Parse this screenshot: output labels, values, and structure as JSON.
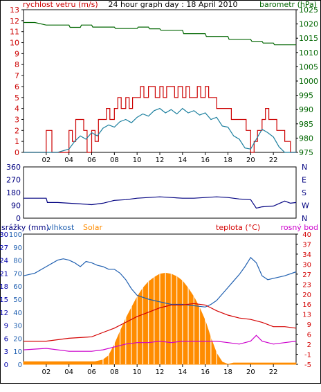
{
  "colors": {
    "wind_axis": "#cc0000",
    "pressure_axis": "#006600",
    "direction_axis": "#000080",
    "precip_axis": "#0000aa",
    "humidity_axis": "#1f5fb0",
    "solar": "#ff8c00",
    "temperature": "#d40000",
    "dewpoint": "#cc00cc",
    "title": "#000000"
  },
  "chart_data": [
    {
      "id": "wind-pressure",
      "type": "line",
      "title": "24 hour graph day : 18 April 2010",
      "ylabel_left": "rychlost vetru (m/s)",
      "ylabel_right": "barometr (hPa)",
      "x_ticks": [
        "02",
        "04",
        "06",
        "08",
        "10",
        "12",
        "14",
        "16",
        "18",
        "20",
        "22"
      ],
      "xlim": [
        0,
        24
      ],
      "ylim_left": [
        0,
        13
      ],
      "ylim_right": [
        975,
        1025
      ],
      "y_ticks_left": [
        0,
        1,
        2,
        3,
        4,
        5,
        6,
        7,
        8,
        9,
        10,
        11,
        12,
        13
      ],
      "y_ticks_right": [
        975,
        980,
        985,
        990,
        995,
        1000,
        1005,
        1010,
        1015,
        1020,
        1025
      ],
      "series": [
        {
          "key": "gust",
          "axis": "left",
          "x": [
            0,
            1.5,
            2,
            2.5,
            3,
            3.5,
            4,
            4.3,
            4.6,
            5,
            5.3,
            5.6,
            6,
            6.3,
            6.6,
            7,
            7.3,
            7.6,
            8,
            8.3,
            8.6,
            9,
            9.3,
            9.6,
            10,
            10.3,
            10.6,
            11,
            11.3,
            11.6,
            12,
            12.3,
            12.6,
            13,
            13.3,
            13.6,
            14,
            14.3,
            14.6,
            15,
            15.3,
            15.6,
            16,
            16.3,
            16.6,
            17,
            17.3,
            17.6,
            18,
            18.3,
            18.6,
            19,
            19.3,
            19.6,
            20,
            20.3,
            20.6,
            21,
            21.3,
            21.6,
            22,
            22.3,
            22.6,
            23,
            23.5,
            24
          ],
          "values": [
            0,
            0,
            2,
            0,
            0,
            0,
            2,
            1,
            3,
            3,
            2,
            0,
            2,
            1,
            3,
            3,
            4,
            3,
            4,
            5,
            4,
            5,
            4,
            5,
            5,
            6,
            5,
            6,
            6,
            5,
            6,
            5,
            6,
            6,
            5,
            6,
            5,
            6,
            5,
            5,
            6,
            5,
            6,
            5,
            5,
            4,
            4,
            4,
            4,
            3,
            3,
            3,
            3,
            2,
            0,
            1,
            2,
            3,
            4,
            3,
            3,
            2,
            2,
            1,
            0,
            0
          ]
        },
        {
          "key": "average",
          "axis": "left",
          "x": [
            0,
            2,
            3,
            4,
            4.5,
            5,
            5.5,
            6,
            6.5,
            7,
            7.5,
            8,
            8.5,
            9,
            9.5,
            10,
            10.5,
            11,
            11.5,
            12,
            12.5,
            13,
            13.5,
            14,
            14.5,
            15,
            15.5,
            16,
            16.5,
            17,
            17.5,
            18,
            18.5,
            19,
            19.5,
            20,
            20.5,
            21,
            21.5,
            22,
            22.5,
            23,
            24
          ],
          "values": [
            0,
            0,
            0,
            0.3,
            1,
            1.5,
            1.2,
            1.8,
            1.5,
            2.2,
            2.5,
            2.3,
            2.8,
            3,
            2.7,
            3.2,
            3.5,
            3.3,
            3.8,
            4,
            3.6,
            3.9,
            3.5,
            4,
            3.6,
            3.8,
            3.4,
            3.6,
            3,
            3.2,
            2.4,
            2.3,
            1.5,
            1.2,
            0.4,
            0.3,
            1.2,
            2.1,
            1.8,
            1.4,
            0.5,
            0,
            0
          ]
        },
        {
          "key": "pressure",
          "axis": "right",
          "x": [
            0,
            1,
            2,
            4,
            4.1,
            5,
            5.1,
            6,
            6.1,
            8,
            8.1,
            10,
            10.1,
            11,
            11.1,
            12,
            12.1,
            14,
            14.1,
            16,
            16.1,
            18,
            18.1,
            20,
            20.1,
            21,
            21.1,
            22,
            22.1,
            24
          ],
          "values": [
            1020.5,
            1020.5,
            1019.6,
            1019.6,
            1018.8,
            1018.8,
            1019.6,
            1019.6,
            1018.9,
            1018.9,
            1018.4,
            1018.4,
            1018.9,
            1018.9,
            1018.3,
            1018.3,
            1017.8,
            1017.8,
            1016.6,
            1016.6,
            1015.6,
            1015.6,
            1014.6,
            1014.6,
            1013.9,
            1013.9,
            1013.3,
            1013.3,
            1012.7,
            1012.7
          ]
        }
      ]
    },
    {
      "id": "wind-direction",
      "type": "line",
      "ylim": [
        0,
        360
      ],
      "y_ticks": [
        0,
        90,
        180,
        270,
        360
      ],
      "y_ticks_right": [
        "N",
        "W",
        "S",
        "E",
        "N"
      ],
      "xlim": [
        0,
        24
      ],
      "series": [
        {
          "key": "direction",
          "x": [
            0,
            2,
            2.1,
            3,
            4,
            5,
            6,
            7,
            8,
            9,
            10,
            11,
            12,
            13,
            14,
            15,
            16,
            17,
            18,
            19,
            20,
            20.5,
            21,
            22,
            23,
            23.5,
            24
          ],
          "values": [
            140,
            140,
            110,
            110,
            105,
            100,
            95,
            105,
            125,
            130,
            140,
            145,
            150,
            145,
            140,
            140,
            145,
            150,
            145,
            135,
            130,
            70,
            80,
            85,
            120,
            105,
            110
          ]
        }
      ]
    },
    {
      "id": "precip-humidity-solar-temp",
      "type": "line",
      "ylabel_precip": "srážky (mm)",
      "ylabel_humidity": "vlhkost",
      "ylabel_solar": "Solar",
      "ylabel_temp": "teplota (°C)",
      "ylabel_dewpoint": "rosný bod",
      "x_ticks": [
        "02",
        "04",
        "06",
        "08",
        "10",
        "12",
        "14",
        "16",
        "18",
        "20",
        "22"
      ],
      "xlim": [
        0,
        24
      ],
      "y_ticks_precip": [
        0,
        3,
        6,
        9,
        12,
        15,
        18,
        21,
        24,
        27,
        30
      ],
      "y_ticks_humidity": [
        0,
        10,
        20,
        30,
        40,
        50,
        60,
        70,
        80,
        90,
        100
      ],
      "y_ticks_temp": [
        -5,
        -1,
        2,
        6,
        9,
        13,
        16,
        20,
        23,
        27,
        30,
        34,
        37,
        40
      ],
      "ylim_humidity": [
        0,
        100
      ],
      "ylim_temp": [
        -5,
        40
      ],
      "ylim_solar": [
        0,
        30
      ],
      "series": [
        {
          "key": "solar",
          "axis": "solar",
          "x": [
            0,
            6.3,
            7,
            7.5,
            8,
            8.5,
            9,
            9.5,
            10,
            10.5,
            11,
            11.5,
            12,
            12.5,
            13,
            13.5,
            14,
            14.5,
            15,
            15.5,
            16,
            16.5,
            17,
            17.5,
            18,
            18.5,
            24
          ],
          "values": [
            0.6,
            0.6,
            1,
            2,
            4.5,
            7.5,
            10.5,
            13,
            15.5,
            17.5,
            19,
            20,
            20.8,
            21,
            20.8,
            20.2,
            19.2,
            17.5,
            15.5,
            13,
            10,
            6,
            2.5,
            0.5,
            0,
            0.3,
            0.3
          ]
        },
        {
          "key": "humidity",
          "axis": "humidity",
          "x": [
            0,
            1,
            2,
            3,
            3.5,
            4,
            4.5,
            5,
            5.5,
            6,
            6.5,
            7,
            7.5,
            8,
            8.5,
            9,
            9.5,
            10,
            11,
            12,
            13,
            14,
            15,
            16,
            16.5,
            17,
            17.5,
            18,
            18.5,
            19,
            19.5,
            20,
            20.5,
            21,
            21.5,
            22,
            23,
            24
          ],
          "values": [
            68,
            70,
            75,
            80,
            81,
            80,
            78,
            75,
            79,
            78,
            76,
            75,
            73,
            73,
            70,
            65,
            58,
            53,
            50,
            48,
            46,
            46,
            45,
            44,
            46,
            49,
            54,
            59,
            64,
            69,
            75,
            82,
            78,
            68,
            65,
            66,
            68,
            71
          ]
        },
        {
          "key": "temperature",
          "axis": "temp",
          "x": [
            0,
            2,
            4,
            6,
            7,
            8,
            9,
            10,
            11,
            12,
            13,
            14,
            15,
            16,
            16.5,
            17,
            18,
            19,
            20,
            21,
            22,
            23,
            24
          ],
          "values": [
            3,
            3,
            4,
            4.5,
            6,
            7.5,
            9.5,
            11.5,
            13,
            14.5,
            15.5,
            15.5,
            16,
            15.5,
            14.5,
            13.5,
            12,
            11,
            10.5,
            9.5,
            8,
            8,
            7.5
          ]
        },
        {
          "key": "dewpoint",
          "axis": "temp",
          "x": [
            0,
            2,
            4,
            6,
            7,
            8,
            9,
            10,
            11,
            12,
            13,
            14,
            15,
            16,
            17,
            18,
            19,
            20,
            20.5,
            21,
            22,
            23,
            24
          ],
          "values": [
            0,
            0.5,
            -0.5,
            -0.5,
            0,
            1,
            2,
            2.5,
            2.5,
            3,
            2.5,
            3,
            3,
            3,
            3,
            2.5,
            2,
            3,
            5,
            3,
            2,
            2.5,
            3
          ]
        },
        {
          "key": "precipitation",
          "axis": "precip",
          "x": [
            0,
            24
          ],
          "values": [
            0,
            0
          ]
        }
      ]
    }
  ]
}
